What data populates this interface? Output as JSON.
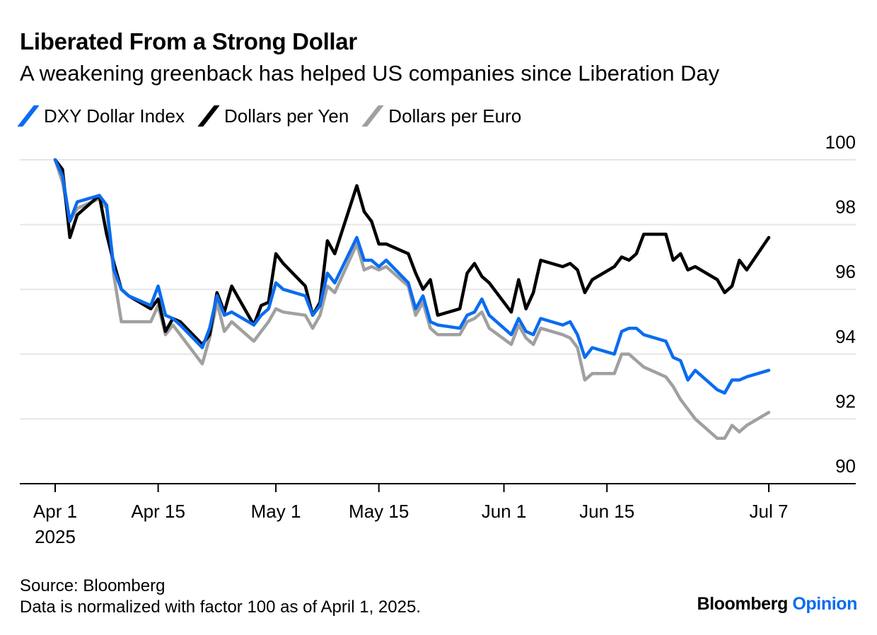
{
  "title": "Liberated From a Strong Dollar",
  "subtitle": "A weakening greenback has helped US companies since Liberation Day",
  "footer": {
    "source": "Source: Bloomberg",
    "note": "Data is normalized with factor 100 as of April 1, 2025."
  },
  "brand": {
    "name": "Bloomberg",
    "suffix": "Opinion"
  },
  "chart_data": {
    "type": "line",
    "title": "Liberated From a Strong Dollar",
    "subtitle": "A weakening greenback has helped US companies since Liberation Day",
    "xlabel": "",
    "ylabel": "",
    "ylim": [
      90,
      100
    ],
    "yticks": [
      100,
      98,
      96,
      94,
      92,
      90
    ],
    "y_axis_side": "right",
    "grid": true,
    "legend_position": "top-left",
    "xticks": [
      {
        "date": "2025-04-01",
        "label": "Apr 1",
        "sublabel": "2025"
      },
      {
        "date": "2025-04-15",
        "label": "Apr 15"
      },
      {
        "date": "2025-05-01",
        "label": "May 1"
      },
      {
        "date": "2025-05-15",
        "label": "May 15"
      },
      {
        "date": "2025-06-01",
        "label": "Jun 1"
      },
      {
        "date": "2025-06-15",
        "label": "Jun 15"
      },
      {
        "date": "2025-07-07",
        "label": "Jul 7"
      }
    ],
    "x": [
      "2025-04-01",
      "2025-04-02",
      "2025-04-03",
      "2025-04-04",
      "2025-04-07",
      "2025-04-08",
      "2025-04-09",
      "2025-04-10",
      "2025-04-11",
      "2025-04-14",
      "2025-04-15",
      "2025-04-16",
      "2025-04-17",
      "2025-04-18",
      "2025-04-21",
      "2025-04-22",
      "2025-04-23",
      "2025-04-24",
      "2025-04-25",
      "2025-04-28",
      "2025-04-29",
      "2025-04-30",
      "2025-05-01",
      "2025-05-02",
      "2025-05-05",
      "2025-05-06",
      "2025-05-07",
      "2025-05-08",
      "2025-05-09",
      "2025-05-12",
      "2025-05-13",
      "2025-05-14",
      "2025-05-15",
      "2025-05-16",
      "2025-05-19",
      "2025-05-20",
      "2025-05-21",
      "2025-05-22",
      "2025-05-23",
      "2025-05-26",
      "2025-05-27",
      "2025-05-28",
      "2025-05-29",
      "2025-05-30",
      "2025-06-02",
      "2025-06-03",
      "2025-06-04",
      "2025-06-05",
      "2025-06-06",
      "2025-06-09",
      "2025-06-10",
      "2025-06-11",
      "2025-06-12",
      "2025-06-13",
      "2025-06-16",
      "2025-06-17",
      "2025-06-18",
      "2025-06-19",
      "2025-06-20",
      "2025-06-23",
      "2025-06-24",
      "2025-06-25",
      "2025-06-26",
      "2025-06-27",
      "2025-06-30",
      "2025-07-01",
      "2025-07-02",
      "2025-07-03",
      "2025-07-04",
      "2025-07-07"
    ],
    "series": [
      {
        "name": "DXY Dollar Index",
        "color": "#0a6cf0",
        "values": [
          100,
          99.5,
          98.1,
          98.7,
          98.9,
          98.6,
          96.6,
          96.0,
          95.8,
          95.5,
          96.1,
          95.2,
          95.1,
          94.9,
          94.2,
          94.8,
          95.8,
          95.2,
          95.3,
          94.9,
          95.2,
          95.4,
          96.2,
          96.0,
          95.8,
          95.2,
          95.5,
          96.5,
          96.2,
          97.6,
          96.9,
          96.9,
          96.7,
          96.9,
          96.2,
          95.4,
          95.8,
          95.0,
          94.9,
          94.8,
          95.2,
          95.3,
          95.7,
          95.2,
          94.6,
          95.1,
          94.7,
          94.6,
          95.1,
          94.9,
          95.0,
          94.6,
          93.9,
          94.2,
          94.0,
          94.7,
          94.8,
          94.8,
          94.6,
          94.4,
          93.9,
          93.8,
          93.2,
          93.5,
          92.9,
          92.8,
          93.2,
          93.2,
          93.3,
          93.5
        ]
      },
      {
        "name": "Dollars per Yen",
        "color": "#000000",
        "values": [
          100,
          99.7,
          97.6,
          98.3,
          98.9,
          97.7,
          96.8,
          96.0,
          95.8,
          95.4,
          95.7,
          94.7,
          95.1,
          95.0,
          94.3,
          94.6,
          95.9,
          95.3,
          96.1,
          94.9,
          95.5,
          95.6,
          97.1,
          96.8,
          96.1,
          95.2,
          95.6,
          97.5,
          97.1,
          99.2,
          98.4,
          98.1,
          97.4,
          97.4,
          97.1,
          96.5,
          96.0,
          96.3,
          95.2,
          95.4,
          96.5,
          96.8,
          96.4,
          96.2,
          95.3,
          96.3,
          95.4,
          95.9,
          96.9,
          96.7,
          96.8,
          96.6,
          95.9,
          96.3,
          96.7,
          97.0,
          96.9,
          97.1,
          97.7,
          97.7,
          96.9,
          97.1,
          96.6,
          96.7,
          96.3,
          95.9,
          96.1,
          96.9,
          96.6,
          97.6
        ]
      },
      {
        "name": "Dollars per Euro",
        "color": "#a0a0a0",
        "values": [
          100,
          99.3,
          98.1,
          98.5,
          98.8,
          98.5,
          96.4,
          95.0,
          95.0,
          95.0,
          95.5,
          94.6,
          94.9,
          94.6,
          93.7,
          94.5,
          95.6,
          94.7,
          95.0,
          94.4,
          94.7,
          95.0,
          95.4,
          95.3,
          95.2,
          94.8,
          95.2,
          96.1,
          95.9,
          97.4,
          96.6,
          96.7,
          96.6,
          96.7,
          96.1,
          95.2,
          95.6,
          94.8,
          94.6,
          94.6,
          95.0,
          95.1,
          95.3,
          94.8,
          94.3,
          94.9,
          94.5,
          94.3,
          94.8,
          94.6,
          94.5,
          94.2,
          93.2,
          93.4,
          93.4,
          94.0,
          94.0,
          93.8,
          93.6,
          93.3,
          93.0,
          92.6,
          92.3,
          92.0,
          91.4,
          91.4,
          91.8,
          91.6,
          91.8,
          92.2
        ]
      }
    ]
  }
}
